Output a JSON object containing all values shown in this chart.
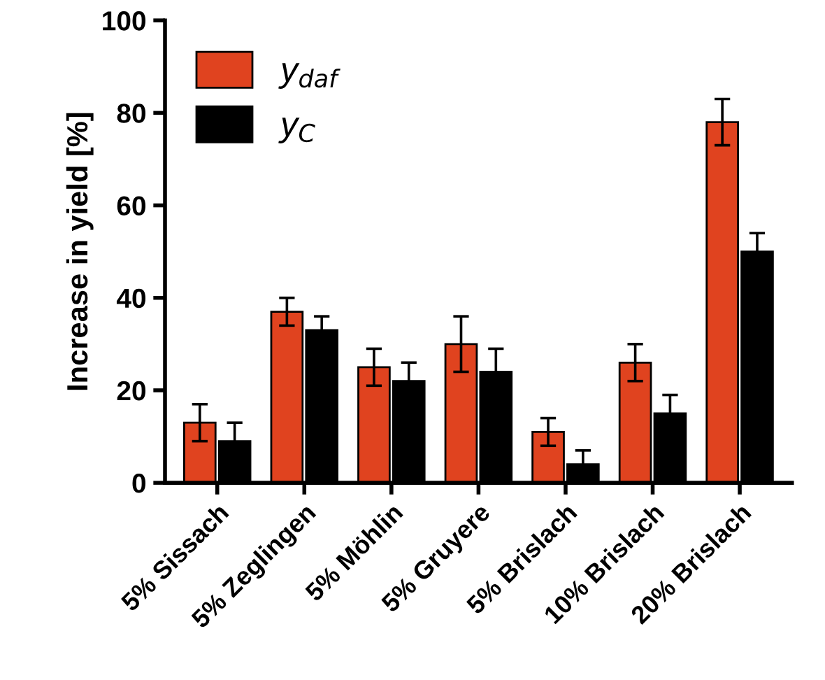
{
  "chart_data": {
    "type": "bar",
    "ylabel": "Increase in yield [%]",
    "categories": [
      "5% Sissach",
      "5% Zeglingen",
      "5% Möhlin",
      "5% Gruyere",
      "5% Brislach",
      "10% Brislach",
      "20% Brislach"
    ],
    "series": [
      {
        "name": "y$_{daf}$",
        "color": "#e0431f",
        "values": [
          13,
          37,
          25,
          30,
          11,
          26,
          78
        ],
        "errors": [
          4,
          3,
          4,
          6,
          3,
          4,
          5
        ]
      },
      {
        "name": "y$_{C}$",
        "color": "#000000",
        "values": [
          9,
          33,
          22,
          24,
          4,
          15,
          50
        ],
        "errors": [
          4,
          3,
          4,
          5,
          3,
          4,
          4
        ]
      }
    ],
    "ylim": [
      0,
      100
    ],
    "yticks": [
      0,
      20,
      40,
      60,
      80,
      100
    ],
    "grid": false,
    "legend": "top left"
  }
}
